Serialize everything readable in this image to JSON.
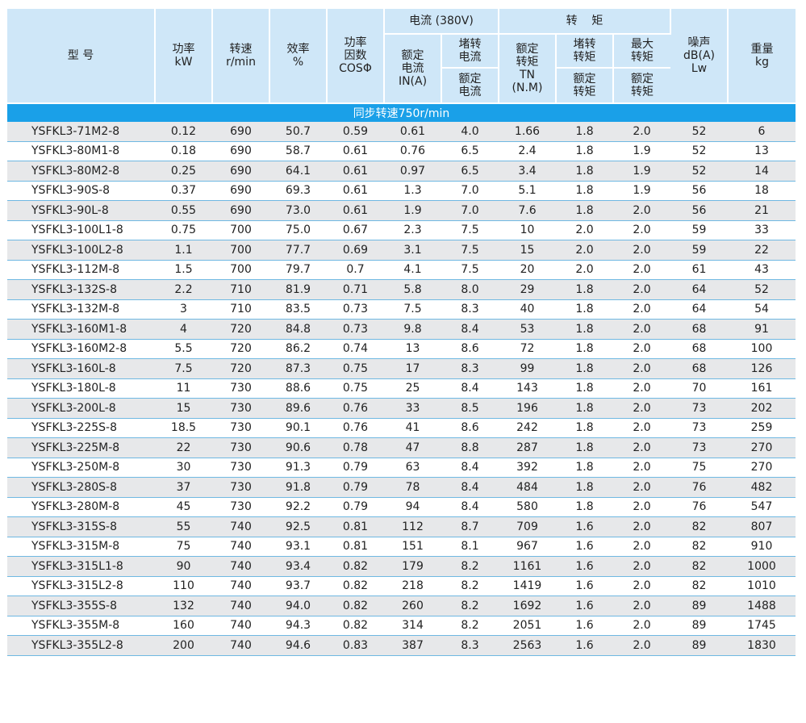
{
  "header": {
    "model": "型 号",
    "power": "功率",
    "power_unit": "kW",
    "speed": "转速",
    "speed_unit": "r/min",
    "efficiency": "效率",
    "efficiency_unit": "%",
    "pf_1": "功率",
    "pf_2": "因数",
    "pf_3": "COSΦ",
    "current_group": "电流 (380V)",
    "rated_current_1": "额定",
    "rated_current_2": "电流",
    "rated_current_3": "IN(A)",
    "locked_current_1": "堵转",
    "locked_current_2": "电流",
    "locked_current_sub_1": "额定",
    "locked_current_sub_2": "电流",
    "torque_group": "转    矩",
    "rated_torque_1": "额定",
    "rated_torque_2": "转矩",
    "rated_torque_3": "TN",
    "rated_torque_4": "(N.M)",
    "locked_torque_1": "堵转",
    "locked_torque_2": "转矩",
    "locked_torque_sub_1": "额定",
    "locked_torque_sub_2": "转矩",
    "max_torque_1": "最大",
    "max_torque_2": "转矩",
    "max_torque_sub_1": "额定",
    "max_torque_sub_2": "转矩",
    "noise_1": "噪声",
    "noise_2": "dB(A)",
    "noise_3": "Lw",
    "weight_1": "重量",
    "weight_2": "kg"
  },
  "section_title": "同步转速750r/min",
  "rows": [
    [
      "YSFKL3-71M2-8",
      "0.12",
      "690",
      "50.7",
      "0.59",
      "0.61",
      "4.0",
      "1.66",
      "1.8",
      "2.0",
      "52",
      "6"
    ],
    [
      "YSFKL3-80M1-8",
      "0.18",
      "690",
      "58.7",
      "0.61",
      "0.76",
      "6.5",
      "2.4",
      "1.8",
      "1.9",
      "52",
      "13"
    ],
    [
      "YSFKL3-80M2-8",
      "0.25",
      "690",
      "64.1",
      "0.61",
      "0.97",
      "6.5",
      "3.4",
      "1.8",
      "1.9",
      "52",
      "14"
    ],
    [
      "YSFKL3-90S-8",
      "0.37",
      "690",
      "69.3",
      "0.61",
      "1.3",
      "7.0",
      "5.1",
      "1.8",
      "1.9",
      "56",
      "18"
    ],
    [
      "YSFKL3-90L-8",
      "0.55",
      "690",
      "73.0",
      "0.61",
      "1.9",
      "7.0",
      "7.6",
      "1.8",
      "2.0",
      "56",
      "21"
    ],
    [
      "YSFKL3-100L1-8",
      "0.75",
      "700",
      "75.0",
      "0.67",
      "2.3",
      "7.5",
      "10",
      "2.0",
      "2.0",
      "59",
      "33"
    ],
    [
      "YSFKL3-100L2-8",
      "1.1",
      "700",
      "77.7",
      "0.69",
      "3.1",
      "7.5",
      "15",
      "2.0",
      "2.0",
      "59",
      "22"
    ],
    [
      "YSFKL3-112M-8",
      "1.5",
      "700",
      "79.7",
      "0.7",
      "4.1",
      "7.5",
      "20",
      "2.0",
      "2.0",
      "61",
      "43"
    ],
    [
      "YSFKL3-132S-8",
      "2.2",
      "710",
      "81.9",
      "0.71",
      "5.8",
      "8.0",
      "29",
      "1.8",
      "2.0",
      "64",
      "52"
    ],
    [
      "YSFKL3-132M-8",
      "3",
      "710",
      "83.5",
      "0.73",
      "7.5",
      "8.3",
      "40",
      "1.8",
      "2.0",
      "64",
      "54"
    ],
    [
      "YSFKL3-160M1-8",
      "4",
      "720",
      "84.8",
      "0.73",
      "9.8",
      "8.4",
      "53",
      "1.8",
      "2.0",
      "68",
      "91"
    ],
    [
      "YSFKL3-160M2-8",
      "5.5",
      "720",
      "86.2",
      "0.74",
      "13",
      "8.6",
      "72",
      "1.8",
      "2.0",
      "68",
      "100"
    ],
    [
      "YSFKL3-160L-8",
      "7.5",
      "720",
      "87.3",
      "0.75",
      "17",
      "8.3",
      "99",
      "1.8",
      "2.0",
      "68",
      "126"
    ],
    [
      "YSFKL3-180L-8",
      "11",
      "730",
      "88.6",
      "0.75",
      "25",
      "8.4",
      "143",
      "1.8",
      "2.0",
      "70",
      "161"
    ],
    [
      "YSFKL3-200L-8",
      "15",
      "730",
      "89.6",
      "0.76",
      "33",
      "8.5",
      "196",
      "1.8",
      "2.0",
      "73",
      "202"
    ],
    [
      "YSFKL3-225S-8",
      "18.5",
      "730",
      "90.1",
      "0.76",
      "41",
      "8.6",
      "242",
      "1.8",
      "2.0",
      "73",
      "259"
    ],
    [
      "YSFKL3-225M-8",
      "22",
      "730",
      "90.6",
      "0.78",
      "47",
      "8.8",
      "287",
      "1.8",
      "2.0",
      "73",
      "270"
    ],
    [
      "YSFKL3-250M-8",
      "30",
      "730",
      "91.3",
      "0.79",
      "63",
      "8.4",
      "392",
      "1.8",
      "2.0",
      "75",
      "270"
    ],
    [
      "YSFKL3-280S-8",
      "37",
      "730",
      "91.8",
      "0.79",
      "78",
      "8.4",
      "484",
      "1.8",
      "2.0",
      "76",
      "482"
    ],
    [
      "YSFKL3-280M-8",
      "45",
      "730",
      "92.2",
      "0.79",
      "94",
      "8.4",
      "580",
      "1.8",
      "2.0",
      "76",
      "547"
    ],
    [
      "YSFKL3-315S-8",
      "55",
      "740",
      "92.5",
      "0.81",
      "112",
      "8.7",
      "709",
      "1.6",
      "2.0",
      "82",
      "807"
    ],
    [
      "YSFKL3-315M-8",
      "75",
      "740",
      "93.1",
      "0.81",
      "151",
      "8.1",
      "967",
      "1.6",
      "2.0",
      "82",
      "910"
    ],
    [
      "YSFKL3-315L1-8",
      "90",
      "740",
      "93.4",
      "0.82",
      "179",
      "8.2",
      "1161",
      "1.6",
      "2.0",
      "82",
      "1000"
    ],
    [
      "YSFKL3-315L2-8",
      "110",
      "740",
      "93.7",
      "0.82",
      "218",
      "8.2",
      "1419",
      "1.6",
      "2.0",
      "82",
      "1010"
    ],
    [
      "YSFKL3-355S-8",
      "132",
      "740",
      "94.0",
      "0.82",
      "260",
      "8.2",
      "1692",
      "1.6",
      "2.0",
      "89",
      "1488"
    ],
    [
      "YSFKL3-355M-8",
      "160",
      "740",
      "94.3",
      "0.82",
      "314",
      "8.2",
      "2051",
      "1.6",
      "2.0",
      "89",
      "1745"
    ],
    [
      "YSFKL3-355L2-8",
      "200",
      "740",
      "94.6",
      "0.83",
      "387",
      "8.3",
      "2563",
      "1.6",
      "2.0",
      "89",
      "1830"
    ]
  ],
  "colors": {
    "header_bg": "#cfe7f8",
    "section_bg": "#1aa0e8",
    "stripe_bg": "#e7e8ea",
    "row_rule": "#6fb8e2"
  }
}
